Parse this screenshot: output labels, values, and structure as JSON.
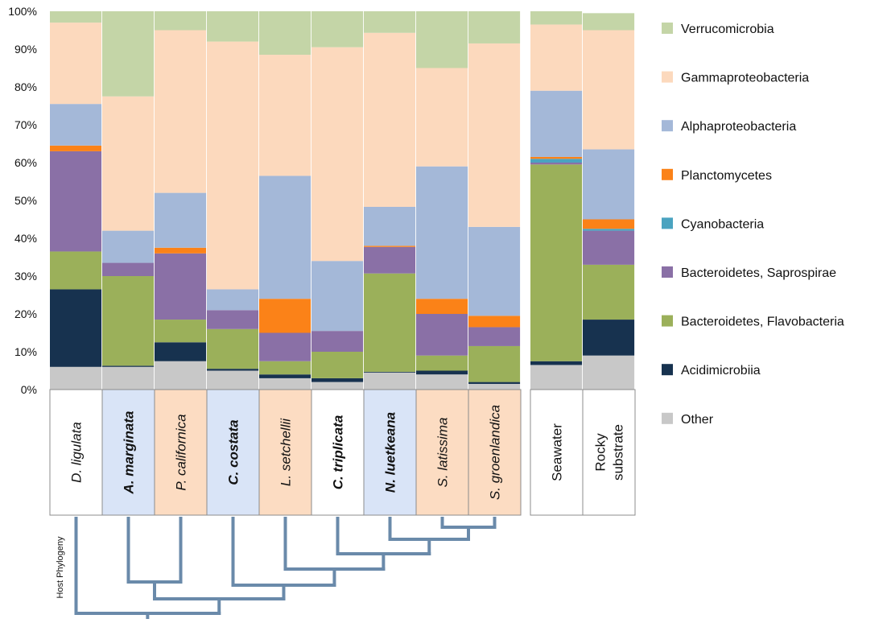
{
  "chart_data": {
    "type": "bar",
    "stacked": true,
    "normalized": true,
    "ylim": [
      0,
      100
    ],
    "yticks": [
      "0%",
      "10%",
      "20%",
      "30%",
      "40%",
      "50%",
      "60%",
      "70%",
      "80%",
      "90%",
      "100%"
    ],
    "legend_position": "right",
    "categories": [
      "D. ligulata",
      "A. marginata",
      "P. californica",
      "C. costata",
      "L. setchellii",
      "C. triplicata",
      "N. luetkeana",
      "S. latissima",
      "S. groenlandica",
      "Seawater",
      "Rocky substrate"
    ],
    "category_lines": [
      [
        "D. ligulata"
      ],
      [
        "A. marginata"
      ],
      [
        "P. californica"
      ],
      [
        "C. costata"
      ],
      [
        "L. setchellii"
      ],
      [
        "C. triplicata"
      ],
      [
        "N. luetkeana"
      ],
      [
        "S. latissima"
      ],
      [
        "S. groenlandica"
      ],
      [
        "Seawater"
      ],
      [
        "Rocky",
        "substrate"
      ]
    ],
    "category_style": {
      "bold": [
        false,
        true,
        false,
        true,
        false,
        true,
        true,
        false,
        false,
        false,
        false
      ],
      "italic": [
        true,
        true,
        true,
        true,
        true,
        true,
        true,
        true,
        true,
        false,
        false
      ],
      "background": [
        "#ffffff",
        "#d9e4f7",
        "#fcdcc2",
        "#d9e4f7",
        "#fcdcc2",
        "#ffffff",
        "#d9e4f7",
        "#fcdcc2",
        "#fcdcc2",
        "#ffffff",
        "#ffffff"
      ]
    },
    "groups": [
      [
        0,
        1,
        2,
        3,
        4,
        5,
        6,
        7,
        8
      ],
      [
        9,
        10
      ]
    ],
    "series": [
      {
        "name": "Other",
        "color": "#c8c8c8",
        "values": [
          6,
          6,
          7.5,
          5,
          3,
          2,
          4.5,
          4,
          1.5,
          6.5,
          9
        ]
      },
      {
        "name": "Acidimicrobiia",
        "color": "#17324f",
        "values": [
          20.5,
          0.3,
          5,
          0.5,
          1,
          1,
          0.2,
          1,
          0.5,
          1,
          9.5
        ]
      },
      {
        "name": "Bacteroidetes, Flavobacteria",
        "color": "#9bb05a",
        "values": [
          10,
          23.7,
          6,
          10.5,
          3.5,
          7,
          26,
          4,
          9.5,
          52,
          14.5
        ]
      },
      {
        "name": "Bacteroidetes, Saprospirae",
        "color": "#8a70a6",
        "values": [
          26.5,
          3.5,
          17.5,
          5,
          7.5,
          5.5,
          7,
          11,
          5,
          0.5,
          9
        ]
      },
      {
        "name": "Cyanobacteria",
        "color": "#4aa3c0",
        "values": [
          0,
          0,
          0,
          0,
          0,
          0,
          0,
          0,
          0,
          1,
          0.5
        ]
      },
      {
        "name": "Planctomycetes",
        "color": "#fb8218",
        "values": [
          1.5,
          0,
          1.5,
          0,
          9,
          0,
          0.3,
          4,
          3,
          0.5,
          2.5
        ]
      },
      {
        "name": "Alphaproteobacteria",
        "color": "#a4b8d8",
        "values": [
          11,
          8.5,
          14.5,
          5.5,
          32.5,
          18.5,
          10.3,
          35,
          23.5,
          17.5,
          18.5
        ]
      },
      {
        "name": "Gammaproteobacteria",
        "color": "#fcd9bd",
        "values": [
          21.5,
          35.5,
          43,
          65.5,
          32,
          56.5,
          46,
          26,
          48.5,
          17.5,
          31.5
        ]
      },
      {
        "name": "Verrucomicrobia",
        "color": "#c4d5a7",
        "values": [
          3,
          22.5,
          5,
          8,
          11.5,
          9.5,
          5.7,
          15,
          8.5,
          3.5,
          4.5
        ]
      }
    ],
    "legend_order": [
      "Verrucomicrobia",
      "Gammaproteobacteria",
      "Alphaproteobacteria",
      "Planctomycetes",
      "Cyanobacteria",
      "Bacteroidetes, Saprospirae",
      "Bacteroidetes, Flavobacteria",
      "Acidimicrobiia",
      "Other"
    ],
    "phylogeny_label": "Host Phylogeny",
    "phylogeny_color": "#6a8aaa"
  }
}
